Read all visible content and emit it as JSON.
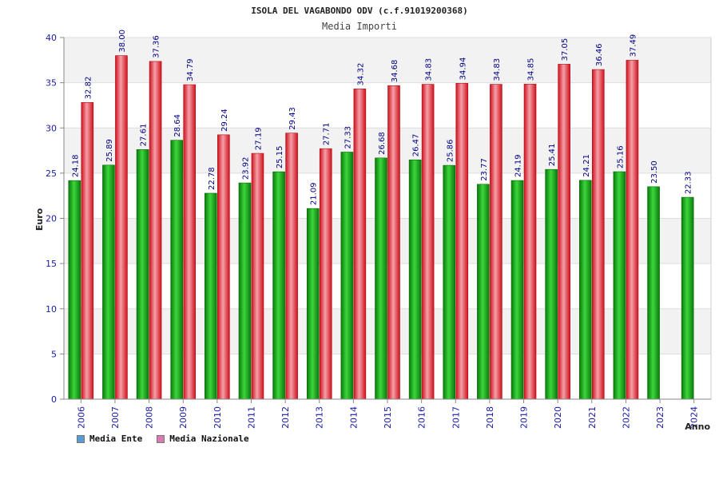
{
  "chart_data": {
    "type": "bar",
    "title": "ISOLA DEL VAGABONDO ODV (c.f.91019200368)",
    "subtitle": "Media Importi",
    "xlabel": "Anno",
    "ylabel": "Euro",
    "ylim": [
      0,
      40
    ],
    "yticks": [
      0,
      5,
      10,
      15,
      20,
      25,
      30,
      35,
      40
    ],
    "grid": true,
    "legend_position": "bottom-left",
    "categories": [
      "2006",
      "2007",
      "2008",
      "2009",
      "2010",
      "2011",
      "2012",
      "2013",
      "2014",
      "2015",
      "2016",
      "2017",
      "2018",
      "2019",
      "2020",
      "2021",
      "2022",
      "2023",
      "2024"
    ],
    "series": [
      {
        "name": "Media Ente",
        "color": "#1aa51a",
        "legend_color": "#5b9bd5",
        "values": [
          24.18,
          25.89,
          27.61,
          28.64,
          22.78,
          23.92,
          25.15,
          21.09,
          27.33,
          26.68,
          26.47,
          25.86,
          23.77,
          24.19,
          25.41,
          24.21,
          25.16,
          23.5,
          22.33
        ],
        "labels": [
          "24.18",
          "25.89",
          "27.61",
          "28.64",
          "22.78",
          "23.92",
          "25.15",
          "21.09",
          "27.33",
          "26.68",
          "26.47",
          "25.86",
          "23.77",
          "24.19",
          "25.41",
          "24.21",
          "25.16",
          "23.50",
          "22.33"
        ]
      },
      {
        "name": "Media Nazionale",
        "color": "#e8303a",
        "legend_color": "#d97ab0",
        "values": [
          32.82,
          38.0,
          37.36,
          34.79,
          29.24,
          27.19,
          29.43,
          27.71,
          34.32,
          34.68,
          34.83,
          34.94,
          34.83,
          34.85,
          37.05,
          36.46,
          37.49,
          null,
          null
        ],
        "labels": [
          "32.82",
          "38.00",
          "37.36",
          "34.79",
          "29.24",
          "27.19",
          "29.43",
          "27.71",
          "34.32",
          "34.68",
          "34.83",
          "34.94",
          "34.83",
          "34.85",
          "37.05",
          "36.46",
          "37.49",
          "",
          ""
        ]
      }
    ]
  }
}
